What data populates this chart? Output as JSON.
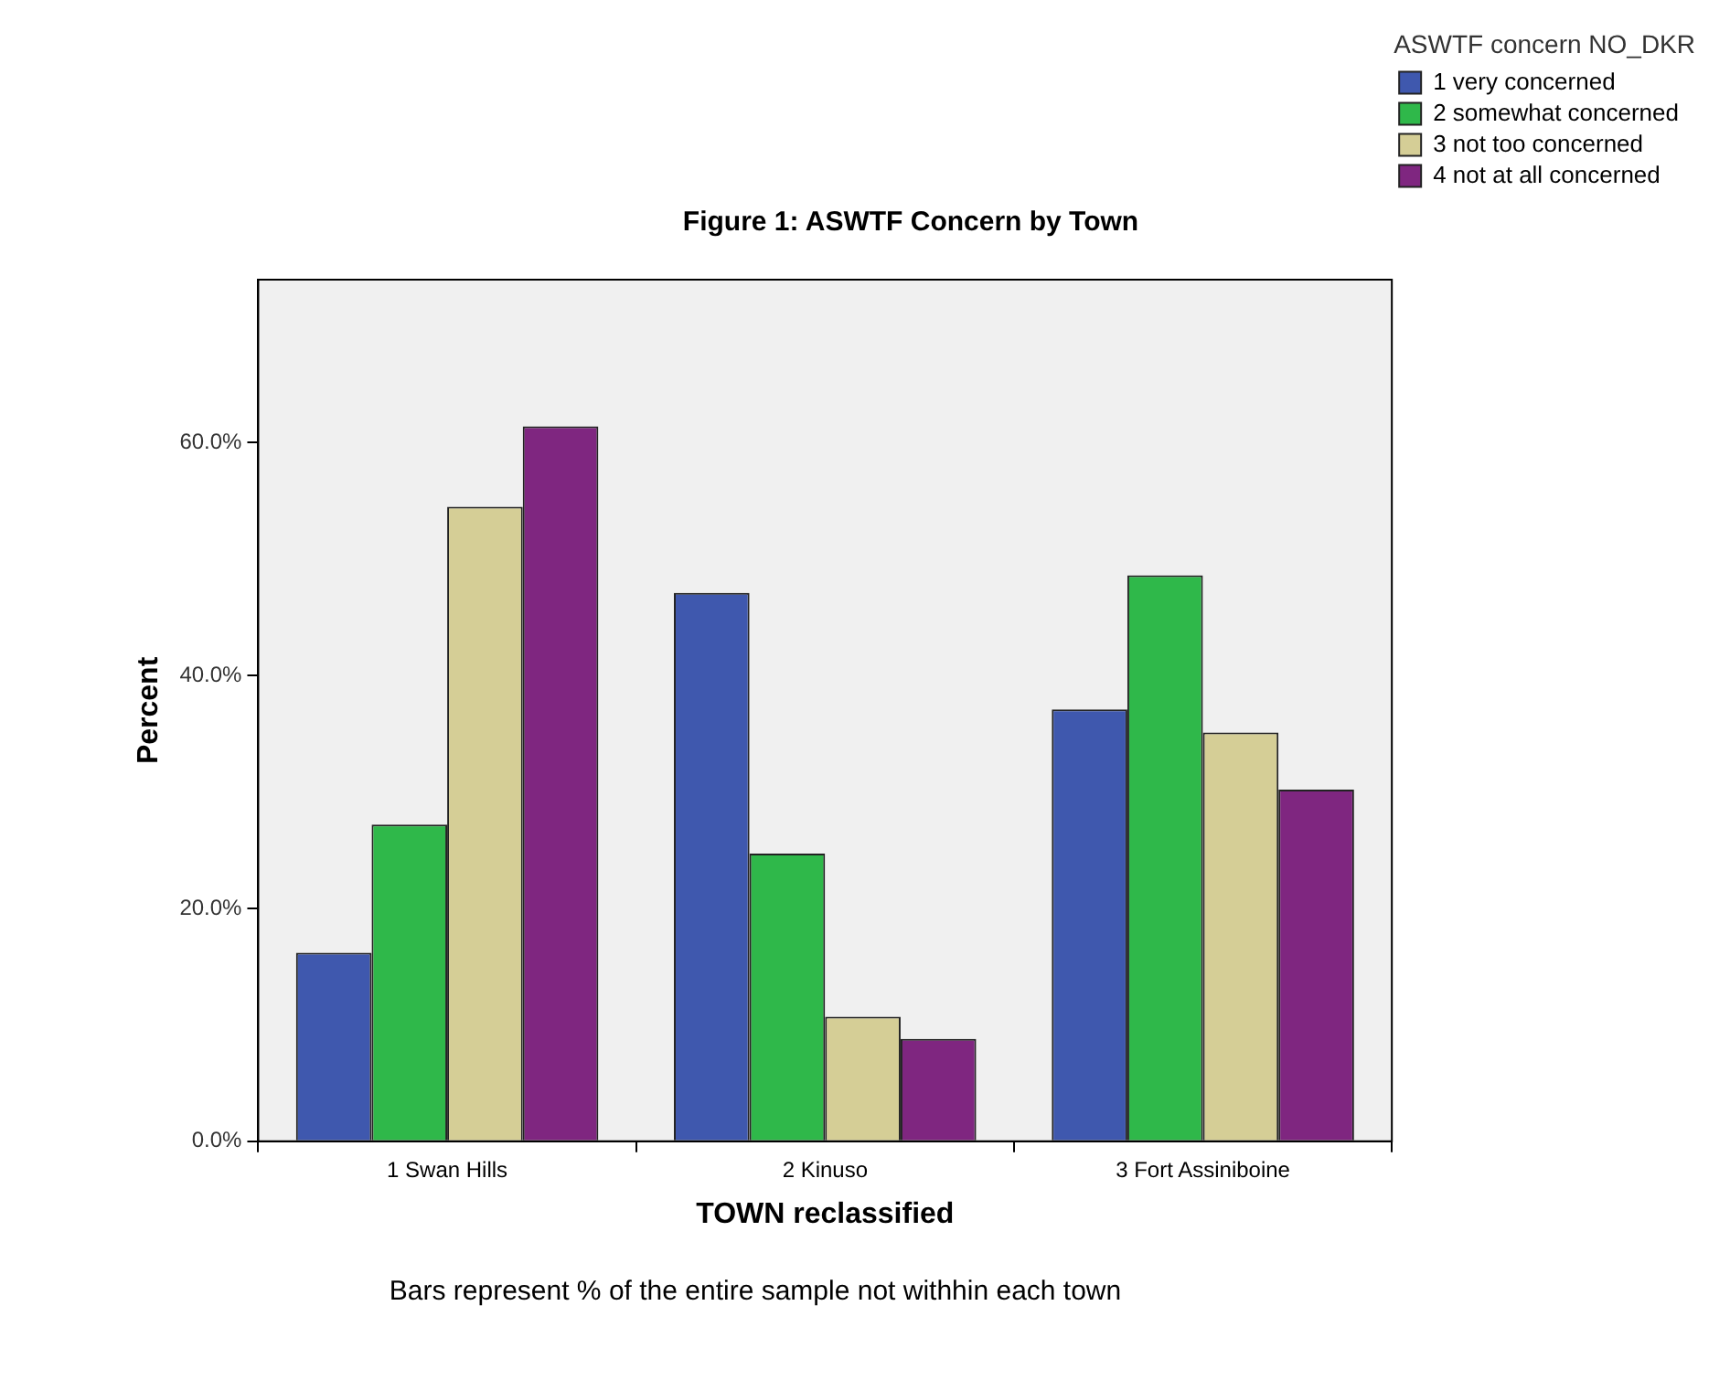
{
  "chart_data": {
    "type": "bar",
    "title": "Figure 1: ASWTF Concern by Town",
    "categories": [
      "1 Swan Hills",
      "2 Kinuso",
      "3 Fort Assiniboine"
    ],
    "series": [
      {
        "name": "1 very concerned",
        "color": "#3f58ae",
        "values": [
          16.2,
          47.1,
          37.1
        ]
      },
      {
        "name": "2 somewhat concerned",
        "color": "#2fb84a",
        "values": [
          27.2,
          24.7,
          48.6
        ]
      },
      {
        "name": "3 not too concerned",
        "color": "#d5ce96",
        "values": [
          54.5,
          10.7,
          35.1
        ]
      },
      {
        "name": "4 not at all concerned",
        "color": "#7f2680",
        "values": [
          61.4,
          8.8,
          30.2
        ]
      }
    ],
    "xlabel": "TOWN reclassified",
    "ylabel": "Percent",
    "legend_title": "ASWTF concern NO_DKR",
    "ylim": [
      0,
      74
    ],
    "yticks": [
      {
        "value": 0,
        "label": "0.0%"
      },
      {
        "value": 20,
        "label": "20.0%"
      },
      {
        "value": 40,
        "label": "40.0%"
      },
      {
        "value": 60,
        "label": "60.0%"
      }
    ],
    "grid": false,
    "legend": "right",
    "annotations": [
      "Bars represent % of the entire sample not withhin each town"
    ]
  }
}
